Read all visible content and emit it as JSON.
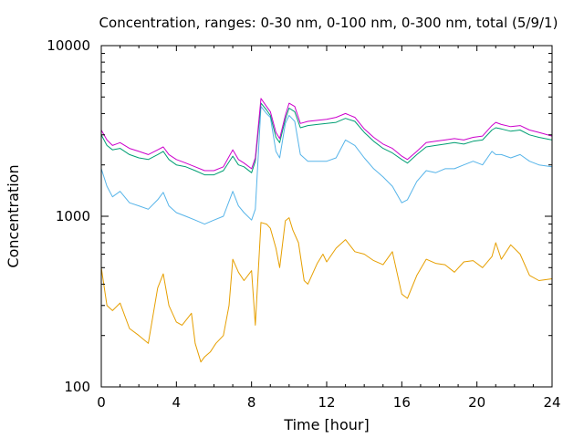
{
  "chart_data": {
    "type": "line",
    "title": "Concentration, ranges: 0-30 nm, 0-100 nm, 0-300 nm, total (5/9/1)",
    "xlabel": "Time [hour]",
    "ylabel": "Concentration",
    "xlim": [
      0,
      24
    ],
    "ylim": [
      100,
      10000
    ],
    "yscale": "log",
    "xticks": [
      0,
      4,
      8,
      12,
      16,
      20,
      24
    ],
    "yticks": [
      100,
      1000,
      10000
    ],
    "xtick_labels": [
      "0",
      "4",
      "8",
      "12",
      "16",
      "20",
      "24"
    ],
    "ytick_labels": [
      "100",
      "1000",
      "10000"
    ],
    "grid": false,
    "series": [
      {
        "color": "#E69F00",
        "x": [
          0,
          0.3,
          0.6,
          1.0,
          1.5,
          2.0,
          2.5,
          3.0,
          3.3,
          3.6,
          4.0,
          4.3,
          4.8,
          5.0,
          5.3,
          5.5,
          5.8,
          6.1,
          6.5,
          6.8,
          7.0,
          7.3,
          7.6,
          8.0,
          8.2,
          8.5,
          8.8,
          9.0,
          9.3,
          9.5,
          9.8,
          10.0,
          10.2,
          10.5,
          10.8,
          11.0,
          11.5,
          11.8,
          12.0,
          12.5,
          13.0,
          13.5,
          14.0,
          14.5,
          15.0,
          15.5,
          16.0,
          16.3,
          16.8,
          17.3,
          17.8,
          18.3,
          18.8,
          19.3,
          19.8,
          20.3,
          20.8,
          21.0,
          21.3,
          21.8,
          22.3,
          22.8,
          23.3,
          24.0
        ],
        "y": [
          500,
          300,
          280,
          310,
          220,
          200,
          180,
          380,
          460,
          300,
          240,
          230,
          270,
          180,
          140,
          150,
          160,
          180,
          200,
          300,
          560,
          470,
          420,
          480,
          230,
          920,
          900,
          850,
          650,
          500,
          940,
          980,
          830,
          700,
          420,
          400,
          530,
          600,
          540,
          650,
          730,
          620,
          600,
          550,
          520,
          620,
          350,
          330,
          450,
          560,
          530,
          520,
          470,
          540,
          550,
          500,
          580,
          700,
          560,
          680,
          600,
          450,
          420,
          430
        ]
      },
      {
        "color": "#56B4E9",
        "x": [
          0,
          0.3,
          0.6,
          1.0,
          1.5,
          2.0,
          2.5,
          3.0,
          3.3,
          3.6,
          4.0,
          4.5,
          5.0,
          5.5,
          6.0,
          6.5,
          7.0,
          7.3,
          7.6,
          8.0,
          8.2,
          8.5,
          8.8,
          9.0,
          9.3,
          9.5,
          9.8,
          10.0,
          10.3,
          10.6,
          11.0,
          11.5,
          12.0,
          12.5,
          13.0,
          13.5,
          14.0,
          14.5,
          15.0,
          15.5,
          16.0,
          16.3,
          16.8,
          17.3,
          17.8,
          18.3,
          18.8,
          19.3,
          19.8,
          20.3,
          20.8,
          21.0,
          21.3,
          21.8,
          22.3,
          22.8,
          23.3,
          24.0
        ],
        "y": [
          1900,
          1500,
          1300,
          1400,
          1200,
          1150,
          1100,
          1250,
          1380,
          1150,
          1050,
          1000,
          950,
          900,
          950,
          1000,
          1400,
          1150,
          1050,
          950,
          1100,
          4400,
          4000,
          3800,
          2400,
          2200,
          3500,
          3900,
          3600,
          2300,
          2100,
          2100,
          2100,
          2200,
          2800,
          2600,
          2200,
          1900,
          1700,
          1500,
          1200,
          1250,
          1600,
          1850,
          1800,
          1900,
          1900,
          2000,
          2100,
          2000,
          2400,
          2300,
          2300,
          2200,
          2300,
          2100,
          2000,
          1950
        ]
      },
      {
        "color": "#009E73",
        "x": [
          0,
          0.3,
          0.6,
          1.0,
          1.5,
          2.0,
          2.5,
          3.0,
          3.3,
          3.6,
          4.0,
          4.5,
          5.0,
          5.5,
          6.0,
          6.5,
          7.0,
          7.3,
          7.6,
          8.0,
          8.2,
          8.5,
          8.8,
          9.0,
          9.3,
          9.5,
          9.8,
          10.0,
          10.3,
          10.6,
          11.0,
          11.5,
          12.0,
          12.5,
          13.0,
          13.5,
          14.0,
          14.5,
          15.0,
          15.5,
          16.0,
          16.3,
          16.8,
          17.3,
          17.8,
          18.3,
          18.8,
          19.3,
          19.8,
          20.3,
          20.8,
          21.0,
          21.3,
          21.8,
          22.3,
          22.8,
          23.3,
          24.0
        ],
        "y": [
          3000,
          2600,
          2450,
          2500,
          2300,
          2200,
          2150,
          2300,
          2400,
          2150,
          2000,
          1950,
          1850,
          1750,
          1750,
          1850,
          2250,
          2000,
          1950,
          1800,
          2100,
          4600,
          4200,
          3900,
          2900,
          2700,
          3700,
          4300,
          4100,
          3300,
          3400,
          3450,
          3500,
          3550,
          3750,
          3600,
          3100,
          2750,
          2500,
          2350,
          2150,
          2050,
          2300,
          2550,
          2600,
          2650,
          2700,
          2650,
          2750,
          2800,
          3200,
          3300,
          3250,
          3150,
          3200,
          3000,
          2900,
          2800
        ]
      },
      {
        "color": "#CC00CC",
        "x": [
          0,
          0.3,
          0.6,
          1.0,
          1.5,
          2.0,
          2.5,
          3.0,
          3.3,
          3.6,
          4.0,
          4.5,
          5.0,
          5.5,
          6.0,
          6.5,
          7.0,
          7.3,
          7.6,
          8.0,
          8.2,
          8.5,
          8.8,
          9.0,
          9.3,
          9.5,
          9.8,
          10.0,
          10.3,
          10.6,
          11.0,
          11.5,
          12.0,
          12.5,
          13.0,
          13.5,
          14.0,
          14.5,
          15.0,
          15.5,
          16.0,
          16.3,
          16.8,
          17.3,
          17.8,
          18.3,
          18.8,
          19.3,
          19.8,
          20.3,
          20.8,
          21.0,
          21.3,
          21.8,
          22.3,
          22.8,
          23.3,
          24.0
        ],
        "y": [
          3200,
          2800,
          2600,
          2700,
          2500,
          2400,
          2300,
          2450,
          2550,
          2300,
          2150,
          2050,
          1950,
          1850,
          1850,
          1950,
          2450,
          2150,
          2050,
          1900,
          2200,
          4900,
          4400,
          4100,
          3100,
          2850,
          3900,
          4600,
          4400,
          3500,
          3600,
          3650,
          3700,
          3800,
          4000,
          3800,
          3250,
          2900,
          2650,
          2500,
          2250,
          2150,
          2400,
          2700,
          2750,
          2800,
          2850,
          2800,
          2900,
          2950,
          3400,
          3550,
          3450,
          3350,
          3400,
          3200,
          3100,
          2950
        ]
      }
    ]
  }
}
